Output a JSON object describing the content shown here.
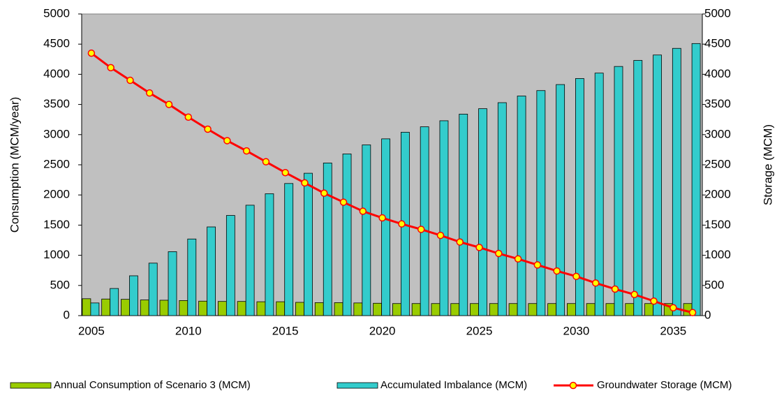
{
  "chart_data": {
    "type": "bar",
    "categories": [
      2005,
      null,
      null,
      null,
      null,
      2010,
      null,
      null,
      null,
      null,
      2015,
      null,
      null,
      null,
      null,
      2020,
      null,
      null,
      null,
      null,
      2025,
      null,
      null,
      null,
      null,
      2030,
      null,
      null,
      null,
      null,
      2035,
      null
    ],
    "y_label": "Consumption (MCM/year)",
    "y2_label": "Storage (MCM)",
    "ylim": [
      0,
      5000
    ],
    "yticks": [
      0,
      500,
      1000,
      1500,
      2000,
      2500,
      3000,
      3500,
      4000,
      4500,
      5000
    ],
    "y2lim": [
      0,
      5000
    ],
    "y2ticks": [
      0,
      500,
      1000,
      1500,
      2000,
      2500,
      3000,
      3500,
      4000,
      4500,
      5000
    ],
    "plot_background": "#c0c0c0",
    "series": [
      {
        "name": "Annual Consumption of Scenario 3 (MCM)",
        "type": "bar",
        "color": "#99cc00",
        "values": [
          280,
          275,
          270,
          260,
          255,
          250,
          240,
          235,
          235,
          230,
          230,
          220,
          215,
          215,
          210,
          205,
          200,
          200,
          200,
          200,
          200,
          200,
          200,
          200,
          200,
          200,
          200,
          200,
          200,
          200,
          200,
          200
        ]
      },
      {
        "name": "Accumulated Imbalance (MCM)",
        "type": "bar",
        "color": "#33cccc",
        "values": [
          210,
          450,
          660,
          870,
          1060,
          1270,
          1470,
          1660,
          1830,
          2020,
          2190,
          2360,
          2530,
          2680,
          2830,
          2930,
          3040,
          3130,
          3230,
          3340,
          3430,
          3530,
          3640,
          3730,
          3830,
          3930,
          4020,
          4130,
          4230,
          4320,
          4430,
          4510
        ]
      },
      {
        "name": "Groundwater Storage (MCM)",
        "type": "line",
        "axis": "y2",
        "color": "#ff0000",
        "marker_color": "#ffff00",
        "values": [
          4350,
          4110,
          3900,
          3690,
          3500,
          3290,
          3090,
          2900,
          2730,
          2550,
          2370,
          2200,
          2030,
          1880,
          1730,
          1620,
          1520,
          1430,
          1330,
          1220,
          1130,
          1030,
          940,
          840,
          740,
          650,
          540,
          440,
          350,
          240,
          130,
          50
        ]
      }
    ]
  }
}
